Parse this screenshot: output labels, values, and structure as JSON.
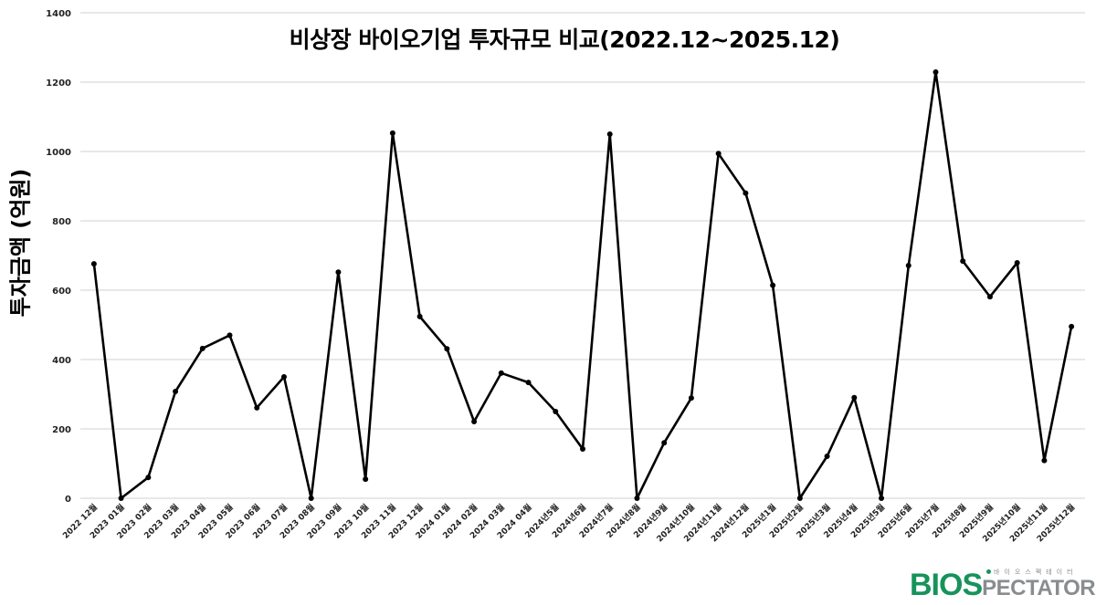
{
  "chart_data": {
    "type": "line",
    "title": "비상장 바이오기업 투자규모 비교(2022.12~2025.12)",
    "xlabel": "",
    "ylabel": "투자금액 (억원)",
    "ylim": [
      0,
      1400
    ],
    "yticks": [
      0,
      200,
      400,
      600,
      800,
      1000,
      1200,
      1400
    ],
    "grid": true,
    "legend": null,
    "categories": [
      "2022 12월",
      "2023 01월",
      "2023 02월",
      "2023 03월",
      "2023 04월",
      "2023 05월",
      "2023 06월",
      "2023 07월",
      "2023 08월",
      "2023 09월",
      "2023 10월",
      "2023 11월",
      "2023 12월",
      "2024 01월",
      "2024 02월",
      "2024 03월",
      "2024 04월",
      "2024년5월",
      "2024년6월",
      "2024년7월",
      "2024년8월",
      "2024년9월",
      "2024년10월",
      "2024년11월",
      "2024년12월",
      "2025년1월",
      "2025년2월",
      "2025년3월",
      "2025년4월",
      "2025년5월",
      "2025년6월",
      "2025년7월",
      "2025년8월",
      "2025년9월",
      "2025년10월",
      "2025년11월",
      "2025년12월"
    ],
    "series": [
      {
        "name": "투자금액",
        "color": "#000000",
        "values": [
          676,
          0,
          60,
          308,
          432,
          470,
          261,
          350,
          0,
          652,
          55,
          1053,
          524,
          431,
          221,
          361,
          334,
          250,
          142,
          1050,
          0,
          160,
          289,
          994,
          880,
          614,
          0,
          121,
          290,
          0,
          671,
          1229,
          684,
          581,
          679,
          109,
          495
        ]
      }
    ]
  },
  "logo": {
    "brand_bold": "BIOS",
    "brand_rest": "PECTATOR",
    "brand_korean": "바이오스펙테이터",
    "brand_color": "#17935a",
    "secondary_color": "#8a8d8f"
  }
}
